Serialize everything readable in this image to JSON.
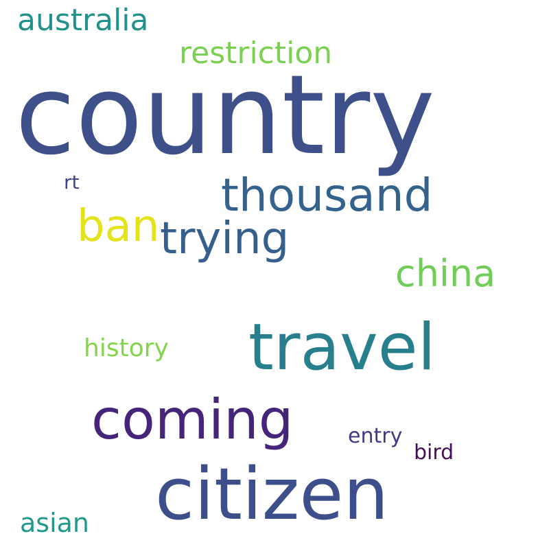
{
  "words": {
    "country": {
      "text": "country",
      "color": "#3e5089"
    },
    "citizen": {
      "text": "citizen",
      "color": "#3d4f8a"
    },
    "travel": {
      "text": "travel",
      "color": "#277f8e"
    },
    "coming": {
      "text": "coming",
      "color": "#46247a"
    },
    "thousand": {
      "text": "thousand",
      "color": "#33638d"
    },
    "trying": {
      "text": "trying",
      "color": "#355f8d"
    },
    "ban": {
      "text": "ban",
      "color": "#e4e31b"
    },
    "china": {
      "text": "china",
      "color": "#6ece58"
    },
    "restriction": {
      "text": "restriction",
      "color": "#7ad151"
    },
    "australia": {
      "text": "australia",
      "color": "#21918c"
    },
    "history": {
      "text": "history",
      "color": "#84d44b"
    },
    "asian": {
      "text": "asian",
      "color": "#1f9a8a"
    },
    "entry": {
      "text": "entry",
      "color": "#443983"
    },
    "bird": {
      "text": "bird",
      "color": "#440f58"
    },
    "rt": {
      "text": "rt",
      "color": "#404387"
    }
  }
}
